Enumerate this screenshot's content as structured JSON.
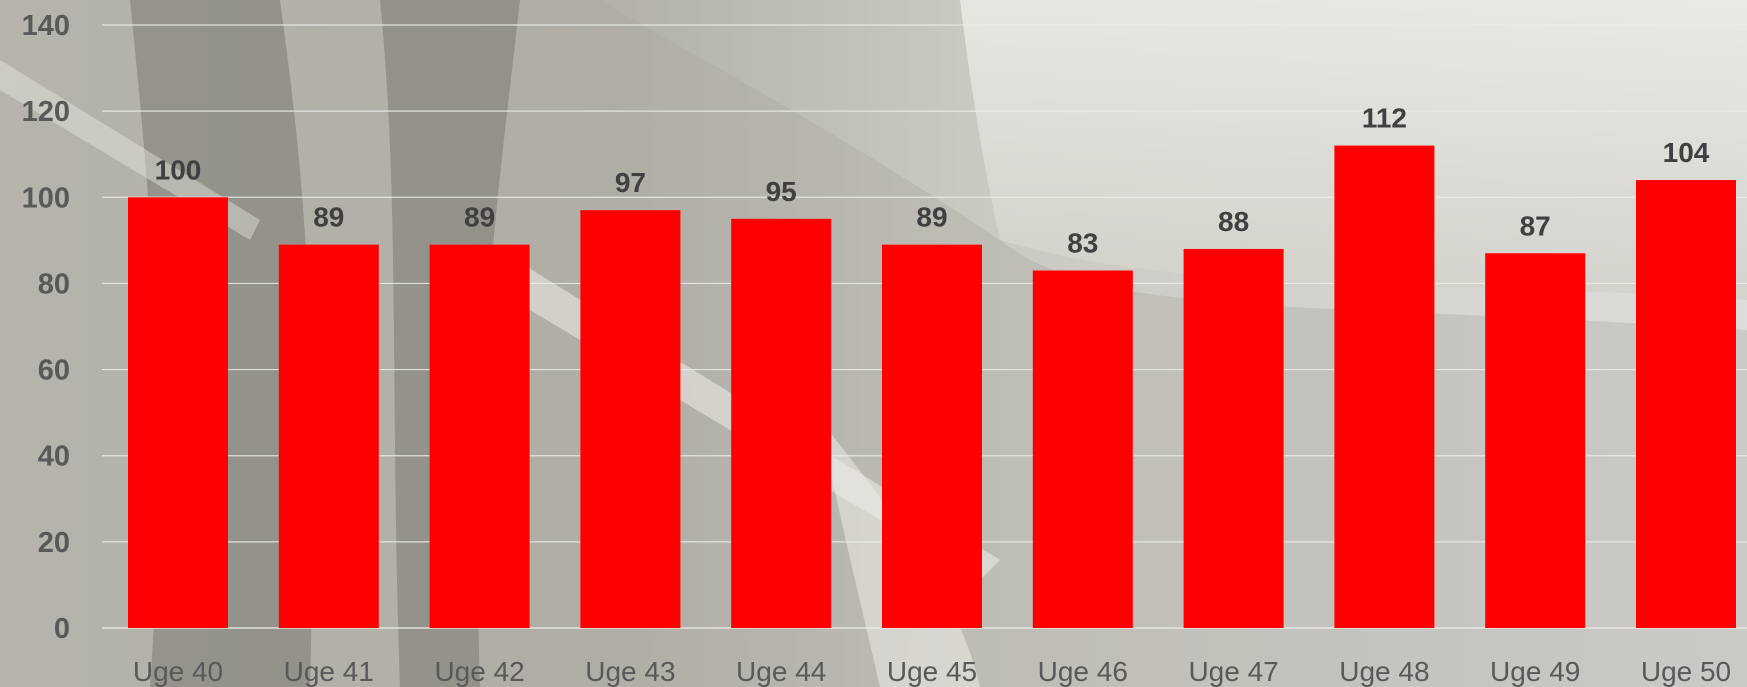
{
  "colors": {
    "bar": "#ff0000",
    "gridline": "#eeeeea",
    "axis_text": "#595959",
    "label_text": "#404040",
    "background_light": "#e4e3dd",
    "background_dark": "#a8a69e"
  },
  "chart_data": {
    "type": "bar",
    "categories": [
      "Uge 40",
      "Uge 41",
      "Uge 42",
      "Uge 43",
      "Uge 44",
      "Uge 45",
      "Uge 46",
      "Uge 47",
      "Uge 48",
      "Uge 49",
      "Uge 50"
    ],
    "values": [
      100,
      89,
      89,
      97,
      95,
      89,
      83,
      88,
      112,
      87,
      104
    ],
    "value_labels": [
      "100",
      "89",
      "89",
      "97",
      "95",
      "89",
      "83",
      "88",
      "112",
      "87",
      "104"
    ],
    "y_ticks": [
      "0",
      "20",
      "40",
      "60",
      "80",
      "100",
      "120",
      "140"
    ],
    "y_tick_values": [
      0,
      20,
      40,
      60,
      80,
      100,
      120,
      140
    ],
    "ylim": [
      0,
      140
    ],
    "grid": true,
    "data_labels": true,
    "legend": "none",
    "background": "black-and-white photograph"
  }
}
